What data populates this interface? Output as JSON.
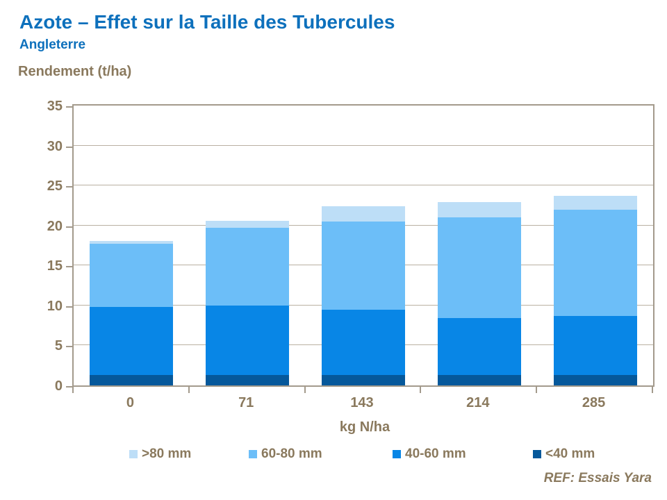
{
  "page": {
    "title": "Azote – Effet sur la Taille des Tubercules",
    "subtitle": "Angleterre",
    "ref": "REF: Essais Yara"
  },
  "colors": {
    "title_blue": "#0d70bc",
    "label_brown": "#8a795d",
    "gridline": "#b9b0a2",
    "frame": "#a39a8c"
  },
  "chart_data": {
    "type": "bar",
    "stacked": true,
    "ylabel": "Rendement (t/ha)",
    "xlabel": "kg N/ha",
    "categories": [
      "0",
      "71",
      "143",
      "214",
      "285"
    ],
    "series": [
      {
        "name": "<40 mm",
        "color": "#05589b",
        "values": [
          1.3,
          1.3,
          1.3,
          1.3,
          1.3
        ]
      },
      {
        "name": "40-60 mm",
        "color": "#0886e6",
        "values": [
          8.5,
          8.7,
          8.2,
          7.1,
          7.4
        ]
      },
      {
        "name": "60-80 mm",
        "color": "#6cbef8",
        "values": [
          7.9,
          9.7,
          11.0,
          12.6,
          13.3
        ]
      },
      {
        "name": ">80 mm",
        "color": "#bddef7",
        "values": [
          0.4,
          0.9,
          1.9,
          1.9,
          1.7
        ]
      }
    ],
    "totals": [
      18.1,
      20.6,
      22.4,
      22.9,
      23.7
    ],
    "ylim": [
      0,
      35
    ],
    "yticks": [
      0,
      5,
      10,
      15,
      20,
      25,
      30,
      35
    ],
    "grid": true,
    "legend_order": [
      ">80 mm",
      "60-80 mm",
      "40-60 mm",
      "<40 mm"
    ],
    "legend_position": "bottom"
  }
}
